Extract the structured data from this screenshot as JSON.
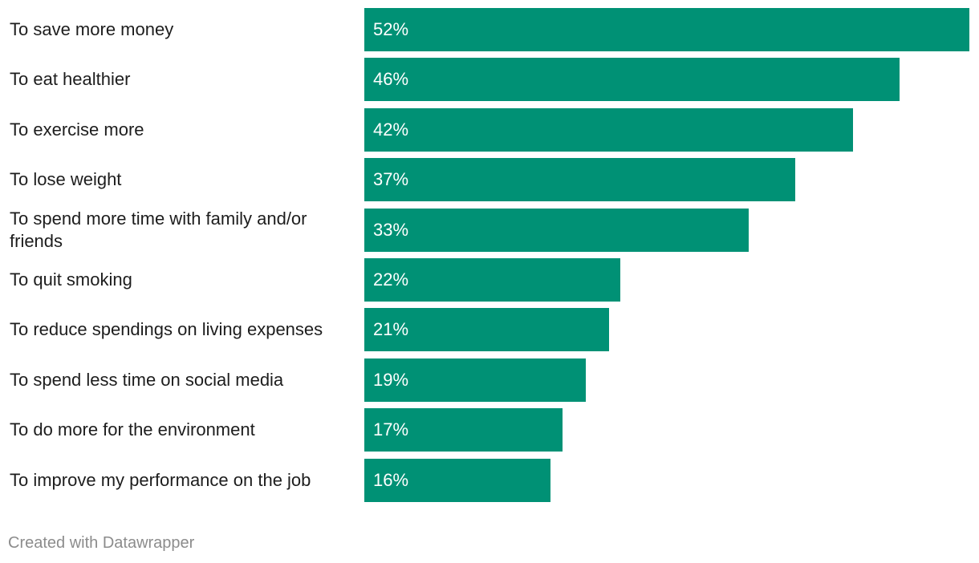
{
  "chart_data": {
    "type": "bar",
    "orientation": "horizontal",
    "categories": [
      "To save more money",
      "To eat healthier",
      "To exercise more",
      "To lose weight",
      "To spend more time with family and/or friends",
      "To quit smoking",
      "To reduce spendings on living expenses",
      "To spend less time on social media",
      "To do more for the environment",
      "To improve my performance on the job"
    ],
    "values": [
      52,
      46,
      42,
      37,
      33,
      22,
      21,
      19,
      17,
      16
    ],
    "value_labels": [
      "52%",
      "46%",
      "42%",
      "37%",
      "33%",
      "22%",
      "21%",
      "19%",
      "17%",
      "16%"
    ],
    "unit": "%",
    "xlim": [
      0,
      52
    ],
    "grid": false,
    "bar_color": "#009175"
  },
  "footer": {
    "credit": "Created with Datawrapper"
  }
}
